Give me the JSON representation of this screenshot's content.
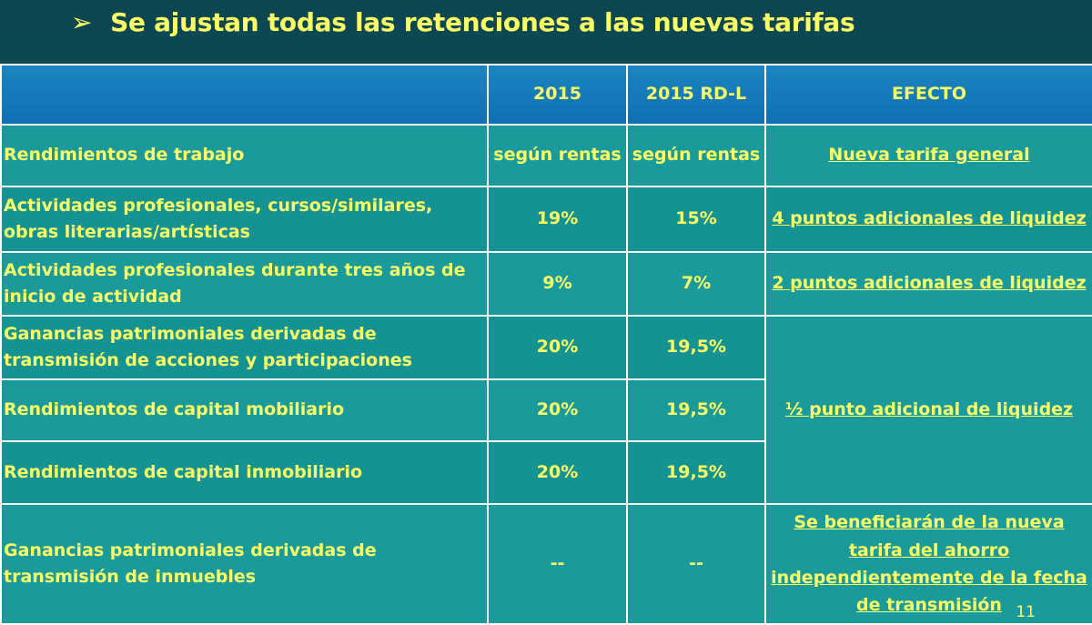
{
  "title": {
    "bullet": "➢",
    "text": "Se ajustan todas las retenciones a las nuevas tarifas"
  },
  "table": {
    "headers": [
      "",
      "2015",
      "2015 RD-L",
      "EFECTO"
    ],
    "rows": [
      {
        "label": "Rendimientos de trabajo",
        "y2015": "según rentas",
        "rdl": "según rentas",
        "effect": "Nueva tarifa general"
      },
      {
        "label": "Actividades profesionales, cursos/similares, obras literarias/artísticas",
        "y2015": "19%",
        "rdl": "15%",
        "effect": "4 puntos adicionales de liquidez"
      },
      {
        "label": "Actividades profesionales durante tres años de inicio de actividad",
        "y2015": "9%",
        "rdl": "7%",
        "effect": "2 puntos adicionales de liquidez"
      },
      {
        "label": "Ganancias patrimoniales derivadas de transmisión de acciones y participaciones",
        "y2015": "20%",
        "rdl": "19,5%",
        "effect": "½ punto adicional de liquidez"
      },
      {
        "label": "Rendimientos de capital mobiliario",
        "y2015": "20%",
        "rdl": "19,5%"
      },
      {
        "label": "Rendimientos de capital inmobiliario",
        "y2015": "20%",
        "rdl": "19,5%"
      },
      {
        "label": "Ganancias patrimoniales derivadas de transmisión de inmuebles",
        "y2015": "--",
        "rdl": "--",
        "effect": "Se beneficiarán de la nueva tarifa del ahorro independientemente de la fecha de transmisión"
      }
    ]
  },
  "page_number": "11"
}
